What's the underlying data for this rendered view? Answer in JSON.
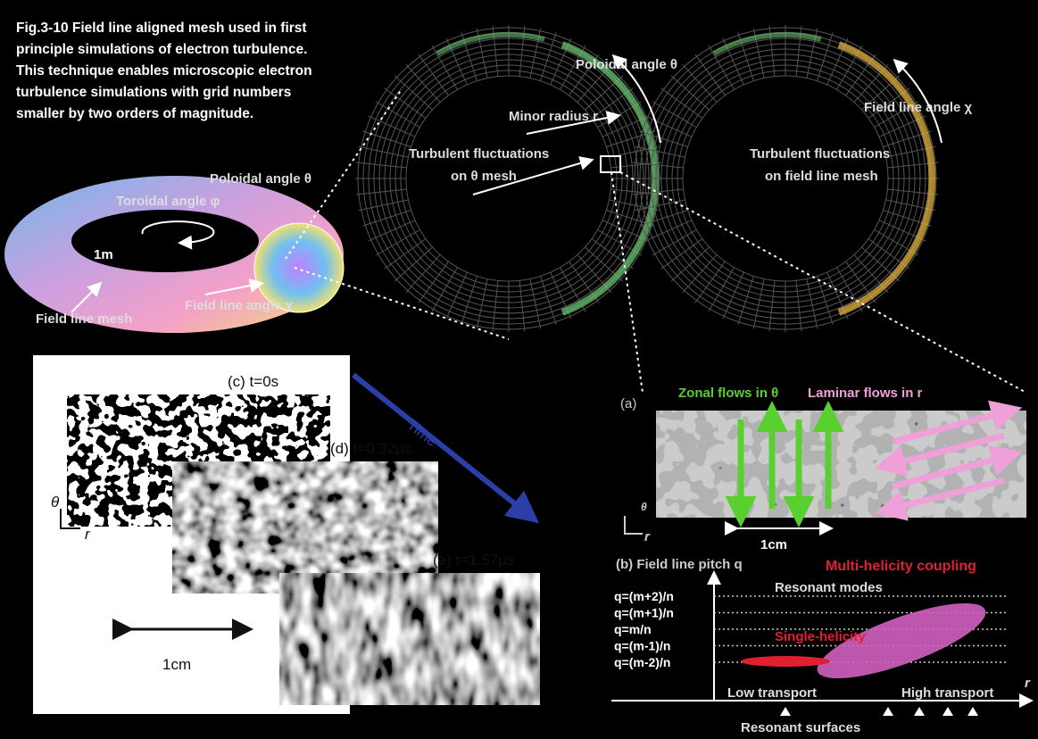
{
  "caption": [
    "Fig.3-10   Field line aligned mesh used in first",
    "principle simulations of electron turbulence.",
    "This technique enables microscopic electron",
    "turbulence simulations with grid numbers",
    "smaller by two orders of magnitude."
  ],
  "torus": {
    "poloidal": "Poloidal angle θ",
    "toroidal": "Toroidal angle φ",
    "scale": "1m",
    "field_angle": "Field line angle χ",
    "mesh": "Field line mesh"
  },
  "theta_mesh": {
    "poloidal": "Poloidal angle θ",
    "radius": "Minor radius r",
    "fluct": [
      "Turbulent fluctuations",
      "on θ mesh"
    ]
  },
  "field_mesh": {
    "angle": "Field line angle χ",
    "fluct": [
      "Turbulent fluctuations",
      "on field line mesh"
    ]
  },
  "time_panels": {
    "labels": [
      "(c) t=0s",
      "(d) t=0.32μs",
      "(e) t=1.57μs"
    ],
    "time": "Time",
    "axis": [
      "θ",
      "r"
    ],
    "scale": "1cm"
  },
  "panel_a": {
    "tag": "(a)",
    "zonal": "Zonal flows in θ",
    "laminar": "Laminar flows in r",
    "axis": [
      "θ",
      "r"
    ],
    "scale": "1cm"
  },
  "panel_b": {
    "title": "(b) Field line pitch q",
    "multi": "Multi-helicity coupling",
    "q_labels": [
      "q=(m+2)/n",
      "q=(m+1)/n",
      "q=m/n",
      "q=(m-1)/n",
      "q=(m-2)/n"
    ],
    "resonant_modes": "Resonant modes",
    "single": "Single-helicity",
    "low": "Low transport",
    "high": "High transport",
    "axis": "r",
    "surfaces": "Resonant surfaces"
  }
}
